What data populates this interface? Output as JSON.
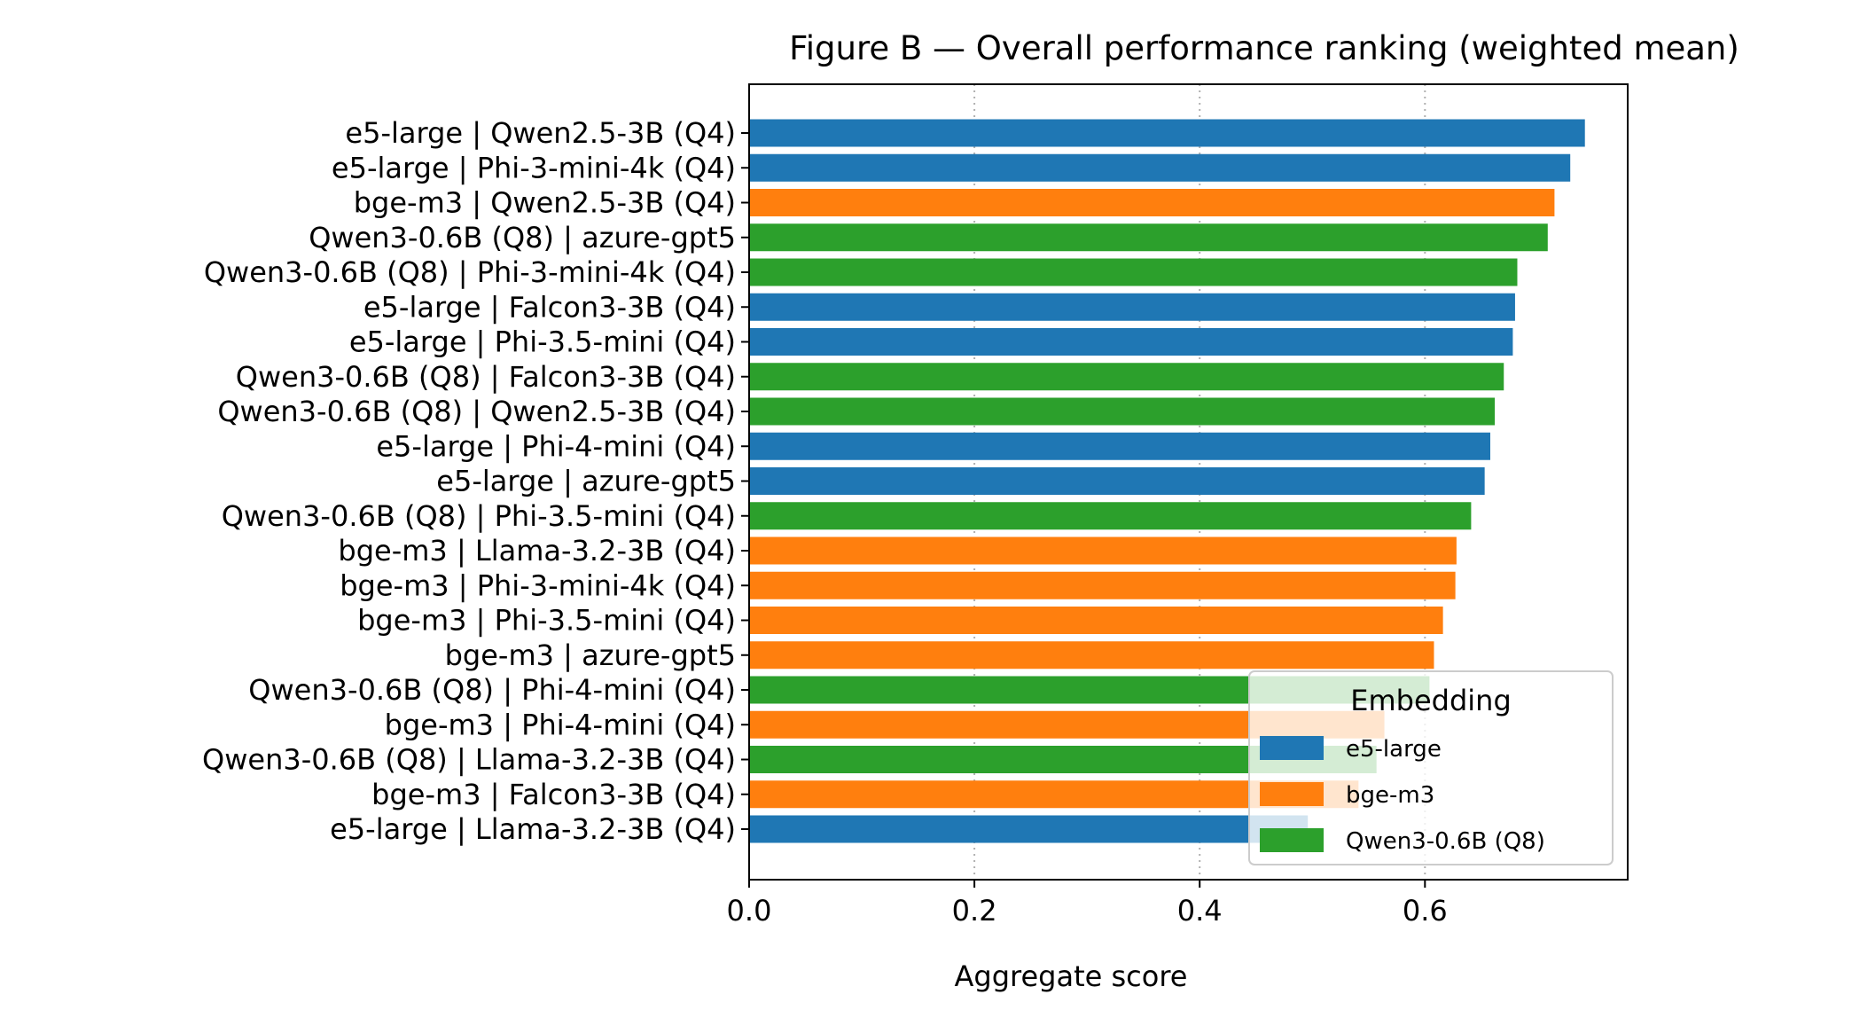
{
  "chart_data": {
    "type": "bar",
    "orientation": "horizontal",
    "title": "Figure B — Overall performance ranking (weighted mean)",
    "xlabel": "Aggregate score",
    "ylabel": "",
    "xlim": [
      0.0,
      0.78
    ],
    "xticks": [
      0.0,
      0.2,
      0.4,
      0.6
    ],
    "xtick_labels": [
      "0.0",
      "0.2",
      "0.4",
      "0.6"
    ],
    "grid": "x, dotted",
    "legend": {
      "title": "Embedding",
      "placement": "lower-right",
      "entries": [
        {
          "name": "e5-large",
          "color": "#1f77b4"
        },
        {
          "name": "bge-m3",
          "color": "#ff7f0e"
        },
        {
          "name": "Qwen3-0.6B (Q8)",
          "color": "#2ca02c"
        }
      ]
    },
    "bars": [
      {
        "label": "e5-large | Qwen2.5-3B (Q4)",
        "group": "e5-large",
        "value": 0.742
      },
      {
        "label": "e5-large | Phi-3-mini-4k (Q4)",
        "group": "e5-large",
        "value": 0.729
      },
      {
        "label": "bge-m3 | Qwen2.5-3B (Q4)",
        "group": "bge-m3",
        "value": 0.715
      },
      {
        "label": "Qwen3-0.6B (Q8) | azure-gpt5",
        "group": "Qwen3-0.6B (Q8)",
        "value": 0.709
      },
      {
        "label": "Qwen3-0.6B (Q8) | Phi-3-mini-4k (Q4)",
        "group": "Qwen3-0.6B (Q8)",
        "value": 0.682
      },
      {
        "label": "e5-large | Falcon3-3B (Q4)",
        "group": "e5-large",
        "value": 0.68
      },
      {
        "label": "e5-large | Phi-3.5-mini (Q4)",
        "group": "e5-large",
        "value": 0.678
      },
      {
        "label": "Qwen3-0.6B (Q8) | Falcon3-3B (Q4)",
        "group": "Qwen3-0.6B (Q8)",
        "value": 0.67
      },
      {
        "label": "Qwen3-0.6B (Q8) | Qwen2.5-3B (Q4)",
        "group": "Qwen3-0.6B (Q8)",
        "value": 0.662
      },
      {
        "label": "e5-large | Phi-4-mini (Q4)",
        "group": "e5-large",
        "value": 0.658
      },
      {
        "label": "e5-large | azure-gpt5",
        "group": "e5-large",
        "value": 0.653
      },
      {
        "label": "Qwen3-0.6B (Q8) | Phi-3.5-mini (Q4)",
        "group": "Qwen3-0.6B (Q8)",
        "value": 0.641
      },
      {
        "label": "bge-m3 | Llama-3.2-3B (Q4)",
        "group": "bge-m3",
        "value": 0.628
      },
      {
        "label": "bge-m3 | Phi-3-mini-4k (Q4)",
        "group": "bge-m3",
        "value": 0.627
      },
      {
        "label": "bge-m3 | Phi-3.5-mini (Q4)",
        "group": "bge-m3",
        "value": 0.616
      },
      {
        "label": "bge-m3 | azure-gpt5",
        "group": "bge-m3",
        "value": 0.608
      },
      {
        "label": "Qwen3-0.6B (Q8) | Phi-4-mini (Q4)",
        "group": "Qwen3-0.6B (Q8)",
        "value": 0.604
      },
      {
        "label": "bge-m3 | Phi-4-mini (Q4)",
        "group": "bge-m3",
        "value": 0.564
      },
      {
        "label": "Qwen3-0.6B (Q8) | Llama-3.2-3B (Q4)",
        "group": "Qwen3-0.6B (Q8)",
        "value": 0.557
      },
      {
        "label": "bge-m3 | Falcon3-3B (Q4)",
        "group": "bge-m3",
        "value": 0.541
      },
      {
        "label": "e5-large | Llama-3.2-3B (Q4)",
        "group": "e5-large",
        "value": 0.496
      }
    ]
  }
}
